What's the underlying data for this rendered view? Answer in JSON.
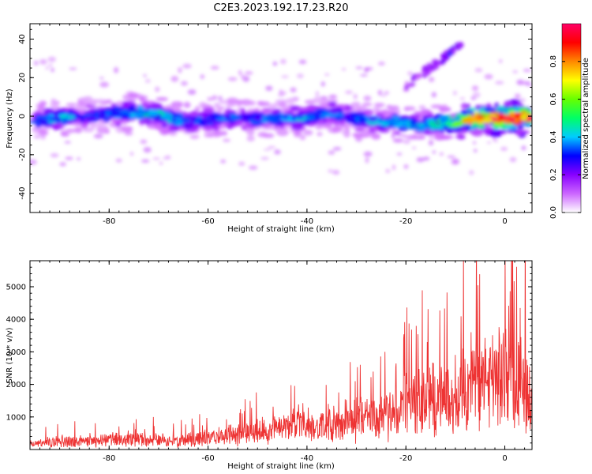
{
  "title": "C2E3.2023.192.17.23.R20",
  "chart_data": [
    {
      "type": "heatmap",
      "xlabel": "Height of straight line (km)",
      "ylabel": "Frequency (Hz)",
      "xlim": [
        -96,
        5.5
      ],
      "ylim": [
        -50,
        48
      ],
      "x_ticks": [
        -80,
        -60,
        -40,
        -20,
        0
      ],
      "y_ticks": [
        -40,
        -20,
        0,
        20,
        40
      ],
      "colorbar": {
        "label": "Normalized spectral amplitude",
        "range": [
          0,
          1
        ],
        "ticks": [
          0.0,
          0.2,
          0.4,
          0.6,
          0.8
        ],
        "colormap": [
          "#ffffff",
          "#cc66ff",
          "#8800ff",
          "#0000ff",
          "#00ccff",
          "#00ff66",
          "#66ff00",
          "#ffff00",
          "#ff8800",
          "#ff0000",
          "#ff0066"
        ]
      },
      "ridge": [
        {
          "x": -95,
          "y": -2,
          "v": 0.3
        },
        {
          "x": -90,
          "y": -1,
          "v": 0.35
        },
        {
          "x": -85,
          "y": 0,
          "v": 0.3
        },
        {
          "x": -80,
          "y": 1,
          "v": 0.3
        },
        {
          "x": -75,
          "y": 2,
          "v": 0.35
        },
        {
          "x": -70,
          "y": 1,
          "v": 0.4
        },
        {
          "x": -65,
          "y": -3,
          "v": 0.3
        },
        {
          "x": -60,
          "y": -2,
          "v": 0.3
        },
        {
          "x": -55,
          "y": 0,
          "v": 0.3
        },
        {
          "x": -50,
          "y": -2,
          "v": 0.3
        },
        {
          "x": -45,
          "y": -1,
          "v": 0.3
        },
        {
          "x": -40,
          "y": -1,
          "v": 0.35
        },
        {
          "x": -35,
          "y": 2,
          "v": 0.3
        },
        {
          "x": -30,
          "y": -2,
          "v": 0.3
        },
        {
          "x": -25,
          "y": -3,
          "v": 0.35
        },
        {
          "x": -20,
          "y": -4,
          "v": 0.35
        },
        {
          "x": -15,
          "y": -4,
          "v": 0.4
        },
        {
          "x": -10,
          "y": -3,
          "v": 0.5
        },
        {
          "x": -5,
          "y": -1,
          "v": 0.8
        },
        {
          "x": 0,
          "y": -1,
          "v": 0.95
        },
        {
          "x": 5,
          "y": -1,
          "v": 0.9
        }
      ],
      "branch": [
        {
          "x": -20,
          "y": 15,
          "v": 0.15
        },
        {
          "x": -17,
          "y": 22,
          "v": 0.15
        },
        {
          "x": -14,
          "y": 27,
          "v": 0.15
        },
        {
          "x": -11,
          "y": 33,
          "v": 0.25
        },
        {
          "x": -8,
          "y": 38,
          "v": 0.12
        }
      ]
    },
    {
      "type": "line",
      "xlabel": "Height of straight line (km)",
      "ylabel": "SNR (10 * v/v)",
      "xlim": [
        -96,
        5.5
      ],
      "ylim": [
        0,
        5800
      ],
      "x_ticks": [
        -80,
        -60,
        -40,
        -20,
        0
      ],
      "y_ticks": [
        1000,
        2000,
        3000,
        4000,
        5000
      ],
      "color": "#ee3333",
      "series": [
        {
          "x": [
            -96,
            -92,
            -88,
            -84,
            -80,
            -76,
            -72,
            -68,
            -64,
            -60,
            -56,
            -52,
            -48,
            -44,
            -42,
            -40,
            -36,
            -32,
            -30,
            -28,
            -26,
            -24,
            -22,
            -20,
            -18,
            -16,
            -14,
            -12,
            -10,
            -8,
            -6,
            -4,
            -2,
            0,
            2,
            3,
            4,
            5,
            5.5
          ],
          "values": [
            300,
            350,
            450,
            400,
            500,
            450,
            500,
            450,
            500,
            600,
            700,
            850,
            950,
            1100,
            1350,
            1000,
            1100,
            1400,
            1500,
            1600,
            1500,
            1600,
            1750,
            2200,
            2300,
            2500,
            2450,
            2400,
            2200,
            3200,
            3400,
            3350,
            3500,
            3400,
            3700,
            4000,
            3600,
            3000,
            3800
          ]
        }
      ]
    }
  ]
}
